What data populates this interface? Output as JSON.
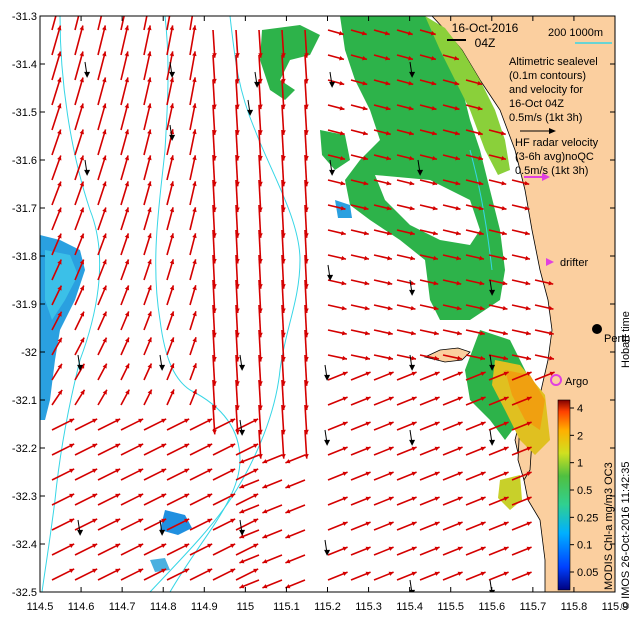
{
  "map": {
    "title_date": "16-Oct-2016",
    "title_time": "04Z",
    "x_ticks": [
      "114.5",
      "114.6",
      "114.7",
      "114.8",
      "114.9",
      "115",
      "115.1",
      "115.2",
      "115.3",
      "115.4",
      "115.5",
      "115.6",
      "115.7",
      "115.8",
      "115.9"
    ],
    "y_ticks": [
      "-31.3",
      "-31.4",
      "-31.5",
      "-31.6",
      "-31.7",
      "-31.8",
      "-31.9",
      "-32",
      "-32.1",
      "-32.2",
      "-32.3",
      "-32.4",
      "-32.5"
    ],
    "lon_range": [
      114.5,
      115.9
    ],
    "lat_range": [
      -32.5,
      -31.3
    ],
    "isobaths_label": "200  1000m",
    "legend_lines": [
      "Altimetric sealevel",
      "(0.1m contours)",
      "and velocity for",
      "16-Oct 04Z",
      "0.5m/s (1kt 3h)"
    ],
    "hf_lines": [
      "HF radar velocity",
      "(3-6h avg)noQC",
      "0.5m/s (1kt 3h)"
    ],
    "drifter_label": "drifter",
    "city_label": "Perth",
    "hobart_label": "Hobart time",
    "argo_label": "Argo",
    "credit_label": "© IMOS 26-Oct-2016 11:42:35",
    "colorbar_label": "MODIS Chl-a mg/m3 OC3",
    "colorbar_ticks": [
      "4",
      "2",
      "1",
      "0.5",
      "0.25",
      "0.1",
      "0.05"
    ],
    "colors": {
      "land": "#fbcf9f",
      "altimetry_arrow": "#d40000",
      "hf_arrow": "#000000",
      "isobath": "#37d6e6",
      "argo": "#e040e0",
      "drifter": "#e040e0"
    }
  }
}
